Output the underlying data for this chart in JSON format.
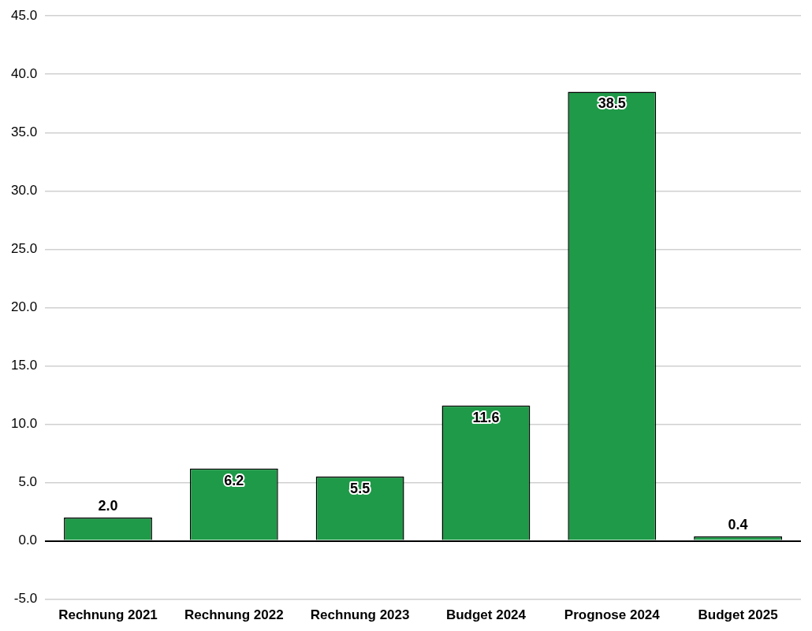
{
  "chart_data": {
    "type": "bar",
    "categories": [
      "Rechnung 2021",
      "Rechnung 2022",
      "Rechnung 2023",
      "Budget 2024",
      "Prognose 2024",
      "Budget 2025"
    ],
    "values": [
      2.0,
      6.2,
      5.5,
      11.6,
      38.5,
      0.4
    ],
    "value_labels": [
      "2.0",
      "6.2",
      "5.5",
      "11.6",
      "38.5",
      "0.4"
    ],
    "color": "#1f9a48",
    "ylim": [
      -5,
      45
    ],
    "yticks": [
      {
        "value": -5,
        "label": "-5.0"
      },
      {
        "value": 0,
        "label": "0.0"
      },
      {
        "value": 5,
        "label": "5.0"
      },
      {
        "value": 10,
        "label": "10.0"
      },
      {
        "value": 15,
        "label": "15.0"
      },
      {
        "value": 20,
        "label": "20.0"
      },
      {
        "value": 25,
        "label": "25.0"
      },
      {
        "value": 30,
        "label": "30.0"
      },
      {
        "value": 35,
        "label": "35.0"
      },
      {
        "value": 40,
        "label": "40.0"
      },
      {
        "value": 45,
        "label": "45.0"
      }
    ],
    "grid": "y",
    "legend": false
  }
}
